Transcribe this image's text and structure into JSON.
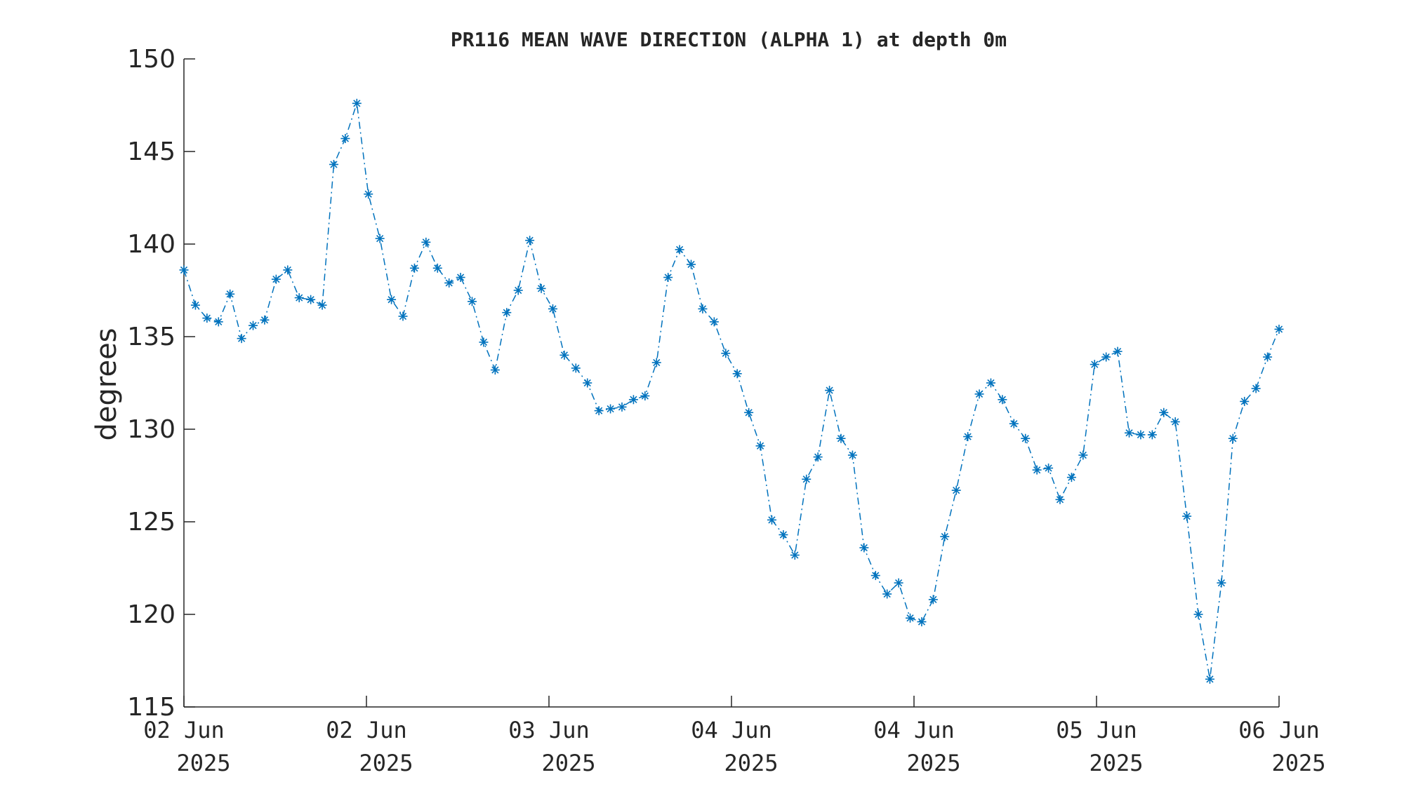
{
  "chart_data": {
    "type": "line",
    "title": "PR116 MEAN WAVE DIRECTION (ALPHA 1) at depth 0m",
    "ylabel": "degrees",
    "xlabel": "",
    "ylim": [
      115,
      150
    ],
    "yticks": [
      "115",
      "120",
      "125",
      "130",
      "135",
      "140",
      "145",
      "150"
    ],
    "xtick_labels": [
      {
        "day": "02 Jun",
        "year": "2025"
      },
      {
        "day": "02 Jun",
        "year": "2025"
      },
      {
        "day": "03 Jun",
        "year": "2025"
      },
      {
        "day": "04 Jun",
        "year": "2025"
      },
      {
        "day": "04 Jun",
        "year": "2025"
      },
      {
        "day": "05 Jun",
        "year": "2025"
      },
      {
        "day": "06 Jun",
        "year": "2025"
      }
    ],
    "marker": "asterisk",
    "line_style": "dash-dot",
    "grid": false,
    "series": [
      {
        "color": "#0072BD",
        "values": [
          138.6,
          136.7,
          136.0,
          135.8,
          137.3,
          134.9,
          135.6,
          135.9,
          138.1,
          138.6,
          137.1,
          137.0,
          136.7,
          144.3,
          145.7,
          147.6,
          142.7,
          140.3,
          137.0,
          136.1,
          138.7,
          140.1,
          138.7,
          137.9,
          138.2,
          136.9,
          134.7,
          133.2,
          136.3,
          137.5,
          140.2,
          137.6,
          136.5,
          134.0,
          133.3,
          132.5,
          131.0,
          131.1,
          131.2,
          131.6,
          131.8,
          133.6,
          138.2,
          139.7,
          138.9,
          136.5,
          135.8,
          134.1,
          133.0,
          130.9,
          129.1,
          125.1,
          124.3,
          123.2,
          127.3,
          128.5,
          132.1,
          129.5,
          128.6,
          123.6,
          122.1,
          121.1,
          121.7,
          119.8,
          119.6,
          120.8,
          124.2,
          126.7,
          129.6,
          131.9,
          132.5,
          131.6,
          130.3,
          129.5,
          127.8,
          127.9,
          126.2,
          127.4,
          128.6,
          133.5,
          133.9,
          134.2,
          129.8,
          129.7,
          129.7,
          130.9,
          130.4,
          125.3,
          120.0,
          116.5,
          121.7,
          129.5,
          131.5,
          132.2,
          133.9,
          135.4
        ]
      }
    ]
  }
}
